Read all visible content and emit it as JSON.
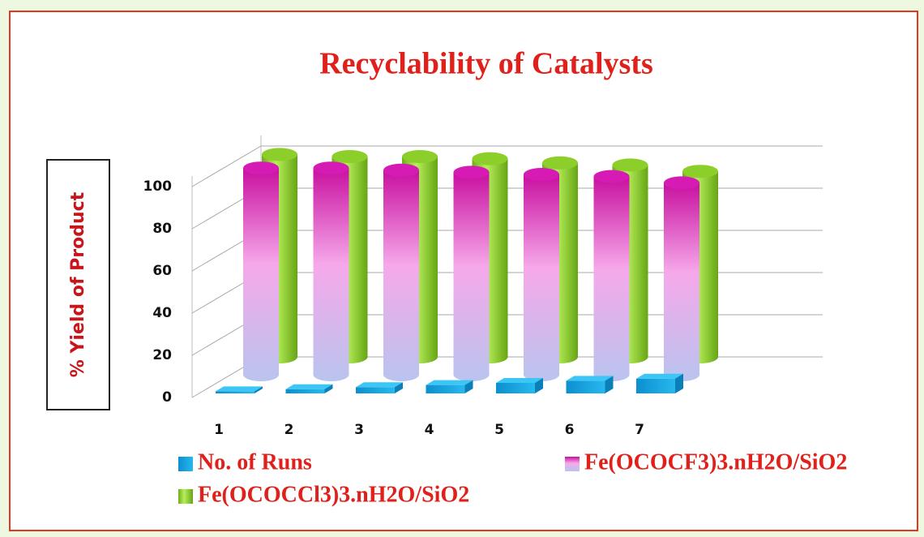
{
  "chart_data": {
    "type": "bar",
    "title": "Recyclability of Catalysts",
    "y_label": "% Yield of Product",
    "categories": [
      "1",
      "2",
      "3",
      "4",
      "5",
      "6",
      "7"
    ],
    "series": [
      {
        "name": "No. of Runs",
        "color": "#1aa7e0",
        "values": [
          1,
          2,
          3,
          4,
          5,
          6,
          7
        ]
      },
      {
        "name": "Fe(OCOCF3)3.nH2O/SiO2",
        "color": "#d61bb5",
        "values": [
          98,
          98,
          97,
          96,
          95,
          94,
          91
        ]
      },
      {
        "name": "Fe(OCOCCl3)3.nH2O/SiO2",
        "color": "#8ccf2a",
        "values": [
          96,
          95,
          95,
          94,
          92,
          91,
          88
        ]
      }
    ],
    "ylim": [
      0,
      105
    ],
    "yticks": [
      0,
      20,
      40,
      60,
      80,
      100
    ],
    "grid": true
  }
}
